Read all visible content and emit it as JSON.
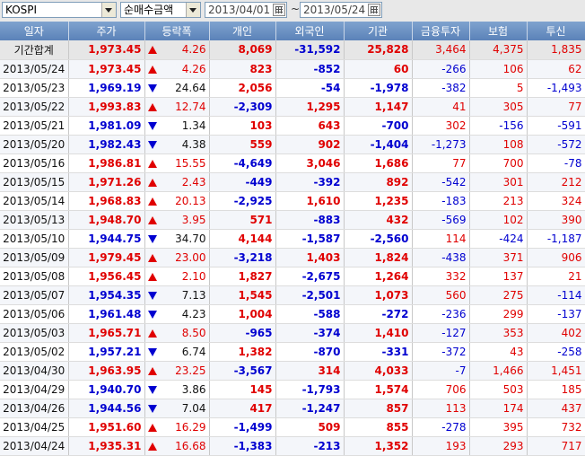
{
  "toolbar": {
    "market": "KOSPI",
    "mode": "순매수금액",
    "start_date": "2013/04/01",
    "separator": "~",
    "end_date": "2013/05/24"
  },
  "columns": [
    "일자",
    "주가",
    "등락폭",
    "개인",
    "외국인",
    "기관",
    "금융투자",
    "보험",
    "투신"
  ],
  "colors": {
    "up": "#e00000",
    "down": "#0000d0",
    "header": "#6b8fc2"
  },
  "rows": [
    [
      "기간합계",
      "1,973.45",
      "4.26",
      "8,069",
      "-31,592",
      "25,828",
      "3,464",
      "4,375",
      "1,835"
    ],
    [
      "2013/05/24",
      "1,973.45",
      "4.26",
      "823",
      "-852",
      "60",
      "-266",
      "106",
      "62"
    ],
    [
      "2013/05/23",
      "1,969.19",
      "24.64",
      "2,056",
      "-54",
      "-1,978",
      "-382",
      "5",
      "-1,493"
    ],
    [
      "2013/05/22",
      "1,993.83",
      "12.74",
      "-2,309",
      "1,295",
      "1,147",
      "41",
      "305",
      "77"
    ],
    [
      "2013/05/21",
      "1,981.09",
      "1.34",
      "103",
      "643",
      "-700",
      "302",
      "-156",
      "-591"
    ],
    [
      "2013/05/20",
      "1,982.43",
      "4.38",
      "559",
      "902",
      "-1,404",
      "-1,273",
      "108",
      "-572"
    ],
    [
      "2013/05/16",
      "1,986.81",
      "15.55",
      "-4,649",
      "3,046",
      "1,686",
      "77",
      "700",
      "-78"
    ],
    [
      "2013/05/15",
      "1,971.26",
      "2.43",
      "-449",
      "-392",
      "892",
      "-542",
      "301",
      "212"
    ],
    [
      "2013/05/14",
      "1,968.83",
      "20.13",
      "-2,925",
      "1,610",
      "1,235",
      "-183",
      "213",
      "324"
    ],
    [
      "2013/05/13",
      "1,948.70",
      "3.95",
      "571",
      "-883",
      "432",
      "-569",
      "102",
      "390"
    ],
    [
      "2013/05/10",
      "1,944.75",
      "34.70",
      "4,144",
      "-1,587",
      "-2,560",
      "114",
      "-424",
      "-1,187"
    ],
    [
      "2013/05/09",
      "1,979.45",
      "23.00",
      "-3,218",
      "1,403",
      "1,824",
      "-438",
      "371",
      "906"
    ],
    [
      "2013/05/08",
      "1,956.45",
      "2.10",
      "1,827",
      "-2,675",
      "1,264",
      "332",
      "137",
      "21"
    ],
    [
      "2013/05/07",
      "1,954.35",
      "7.13",
      "1,545",
      "-2,501",
      "1,073",
      "560",
      "275",
      "-114"
    ],
    [
      "2013/05/06",
      "1,961.48",
      "4.23",
      "1,004",
      "-588",
      "-272",
      "-236",
      "299",
      "-137"
    ],
    [
      "2013/05/03",
      "1,965.71",
      "8.50",
      "-965",
      "-374",
      "1,410",
      "-127",
      "353",
      "402"
    ],
    [
      "2013/05/02",
      "1,957.21",
      "6.74",
      "1,382",
      "-870",
      "-331",
      "-372",
      "43",
      "-258"
    ],
    [
      "2013/04/30",
      "1,963.95",
      "23.25",
      "-3,567",
      "314",
      "4,033",
      "-7",
      "1,466",
      "1,451"
    ],
    [
      "2013/04/29",
      "1,940.70",
      "3.86",
      "145",
      "-1,793",
      "1,574",
      "706",
      "503",
      "185"
    ],
    [
      "2013/04/26",
      "1,944.56",
      "7.04",
      "417",
      "-1,247",
      "857",
      "113",
      "174",
      "437"
    ],
    [
      "2013/04/25",
      "1,951.60",
      "16.29",
      "-1,499",
      "509",
      "855",
      "-278",
      "395",
      "732"
    ],
    [
      "2013/04/24",
      "1,935.31",
      "16.68",
      "-1,383",
      "-213",
      "1,352",
      "193",
      "293",
      "717"
    ]
  ],
  "directions": [
    "up",
    "up",
    "down",
    "up",
    "down",
    "down",
    "up",
    "up",
    "up",
    "up",
    "down",
    "up",
    "up",
    "down",
    "down",
    "up",
    "down",
    "up",
    "down",
    "down",
    "up",
    "up"
  ]
}
